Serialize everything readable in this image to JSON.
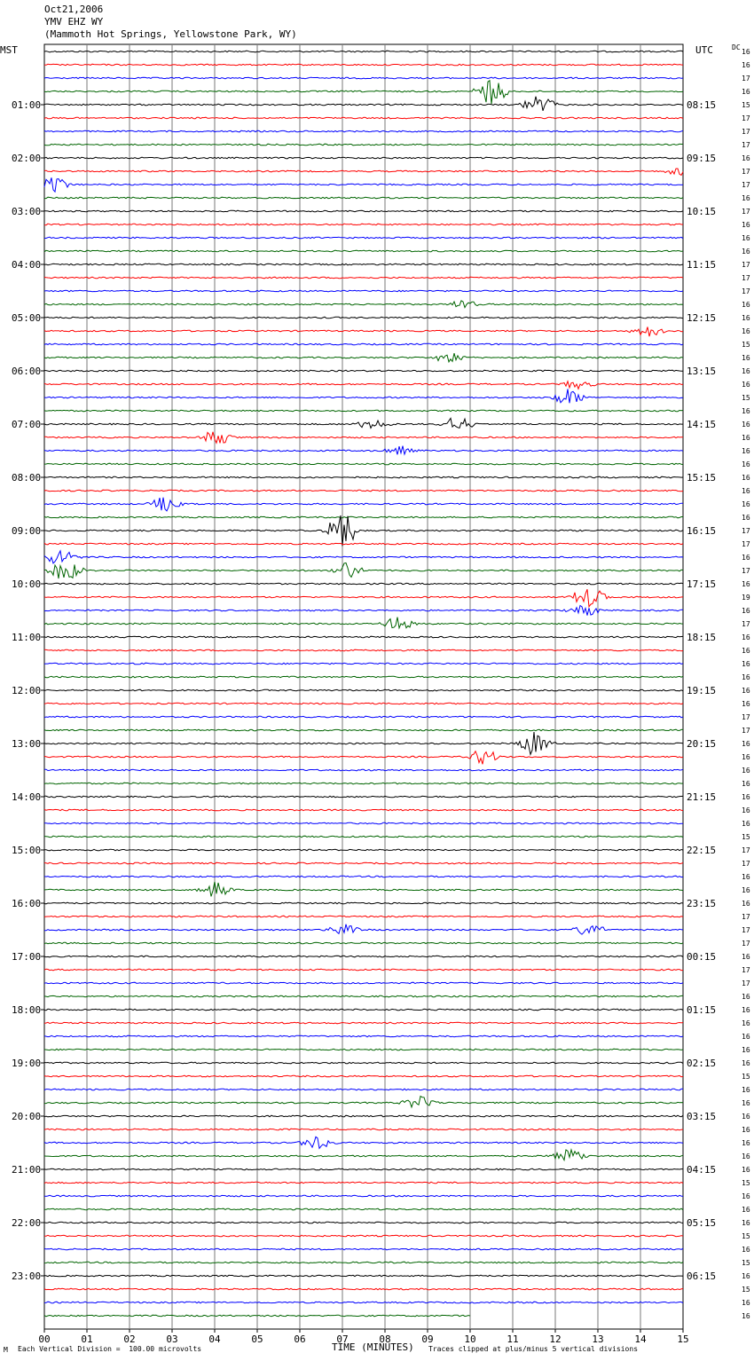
{
  "header": {
    "date": "Oct21,2006",
    "station": "YMV EHZ WY",
    "location": "(Mammoth Hot Springs, Yellowstone Park, WY)"
  },
  "left_zone": "MST",
  "right_zone": "UTC",
  "dc_label": "DC",
  "footer": {
    "scale_note": "Each Vertical Division =  100.00 microvolts",
    "xaxis_title": "TIME (MINUTES)",
    "clip_note": "Traces clipped at plus/minus 5 vertical divisions",
    "corner_mark": "M"
  },
  "chart_data": {
    "type": "line",
    "title": "YMV EHZ WY",
    "xlabel": "TIME (MINUTES)",
    "ylabel": "",
    "xlim": [
      0,
      15
    ],
    "x_ticks": [
      "00",
      "01",
      "02",
      "03",
      "04",
      "05",
      "06",
      "07",
      "08",
      "09",
      "10",
      "11",
      "12",
      "13",
      "14",
      "15"
    ],
    "grid": true,
    "trace_colors": [
      "#000000",
      "#ff0000",
      "#0000ff",
      "#006400"
    ],
    "num_traces": 96,
    "left_hour_labels": [
      "01:00",
      "02:00",
      "03:00",
      "04:00",
      "05:00",
      "06:00",
      "07:00",
      "08:00",
      "09:00",
      "10:00",
      "11:00",
      "12:00",
      "13:00",
      "14:00",
      "15:00",
      "16:00",
      "17:00",
      "18:00",
      "19:00",
      "20:00",
      "21:00",
      "22:00",
      "23:00"
    ],
    "right_hour_labels": [
      "08:15",
      "09:15",
      "10:15",
      "11:15",
      "12:15",
      "13:15",
      "14:15",
      "15:15",
      "16:15",
      "17:15",
      "18:15",
      "19:15",
      "20:15",
      "21:15",
      "22:15",
      "23:15",
      "00:15",
      "01:15",
      "02:15",
      "03:15",
      "04:15",
      "05:15",
      "06:15"
    ],
    "dc_offsets": [
      "16",
      "16",
      "17",
      "16",
      "15",
      "17",
      "17",
      "17",
      "16",
      "17",
      "17",
      "16",
      "17",
      "16",
      "16",
      "16",
      "17",
      "17",
      "17",
      "16",
      "16",
      "16",
      "15",
      "16",
      "16",
      "16",
      "15",
      "16",
      "16",
      "16",
      "16",
      "16",
      "16",
      "16",
      "16",
      "16",
      "17",
      "17",
      "16",
      "17",
      "16",
      "19",
      "16",
      "17",
      "16",
      "16",
      "16",
      "16",
      "16",
      "16",
      "17",
      "17",
      "16",
      "16",
      "16",
      "16",
      "16",
      "16",
      "16",
      "15",
      "17",
      "17",
      "16",
      "16",
      "16",
      "17",
      "17",
      "17",
      "16",
      "17",
      "17",
      "16",
      "16",
      "16",
      "16",
      "16",
      "16",
      "15",
      "16",
      "16",
      "16",
      "16",
      "16",
      "16",
      "16",
      "15",
      "16",
      "16",
      "16",
      "15",
      "16",
      "15",
      "16",
      "15",
      "16",
      "16"
    ],
    "events": [
      {
        "trace": 3,
        "minute": 10.5,
        "amplitude": 2.2
      },
      {
        "trace": 4,
        "minute": 11.6,
        "amplitude": 1.6
      },
      {
        "trace": 10,
        "minute": 0.2,
        "amplitude": 1.4
      },
      {
        "trace": 9,
        "minute": 15.0,
        "amplitude": 1.0
      },
      {
        "trace": 19,
        "minute": 9.8,
        "amplitude": 0.7
      },
      {
        "trace": 21,
        "minute": 14.2,
        "amplitude": 1.0
      },
      {
        "trace": 23,
        "minute": 9.5,
        "amplitude": 0.8
      },
      {
        "trace": 26,
        "minute": 12.3,
        "amplitude": 1.4
      },
      {
        "trace": 25,
        "minute": 12.5,
        "amplitude": 0.8
      },
      {
        "trace": 28,
        "minute": 9.7,
        "amplitude": 1.3
      },
      {
        "trace": 28,
        "minute": 7.7,
        "amplitude": 0.9
      },
      {
        "trace": 29,
        "minute": 4.0,
        "amplitude": 1.4
      },
      {
        "trace": 30,
        "minute": 8.4,
        "amplitude": 0.8
      },
      {
        "trace": 34,
        "minute": 2.9,
        "amplitude": 1.4
      },
      {
        "trace": 36,
        "minute": 7.0,
        "amplitude": 3.0
      },
      {
        "trace": 38,
        "minute": 0.4,
        "amplitude": 1.5
      },
      {
        "trace": 39,
        "minute": 0.5,
        "amplitude": 1.8
      },
      {
        "trace": 39,
        "minute": 7.1,
        "amplitude": 1.4
      },
      {
        "trace": 41,
        "minute": 12.8,
        "amplitude": 1.8
      },
      {
        "trace": 42,
        "minute": 12.7,
        "amplitude": 1.2
      },
      {
        "trace": 43,
        "minute": 8.3,
        "amplitude": 1.3
      },
      {
        "trace": 52,
        "minute": 11.5,
        "amplitude": 2.0
      },
      {
        "trace": 53,
        "minute": 10.3,
        "amplitude": 1.2
      },
      {
        "trace": 63,
        "minute": 4.0,
        "amplitude": 1.2
      },
      {
        "trace": 66,
        "minute": 12.8,
        "amplitude": 1.0
      },
      {
        "trace": 66,
        "minute": 7.0,
        "amplitude": 1.0
      },
      {
        "trace": 79,
        "minute": 8.8,
        "amplitude": 1.1
      },
      {
        "trace": 82,
        "minute": 6.4,
        "amplitude": 1.2
      },
      {
        "trace": 83,
        "minute": 12.3,
        "amplitude": 1.4
      }
    ]
  }
}
